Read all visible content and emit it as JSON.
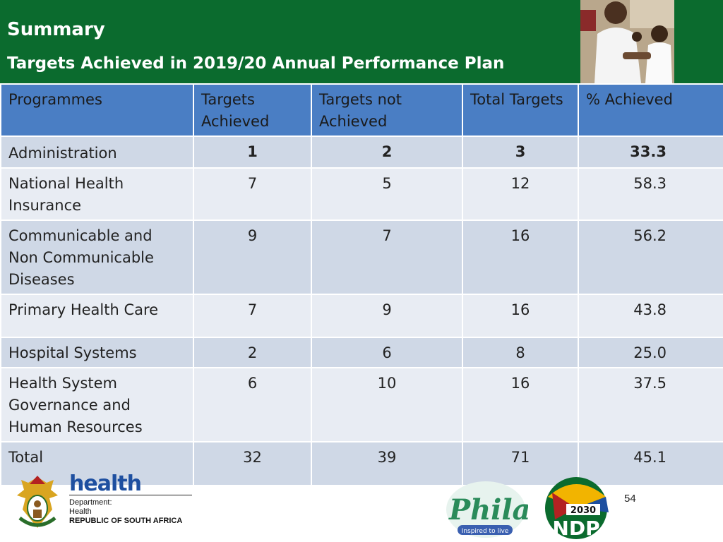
{
  "header": {
    "title": "Summary",
    "subtitle": "Targets Achieved in 2019/20 Annual Performance Plan"
  },
  "table": {
    "columns": [
      "Programmes",
      "Targets Achieved",
      "Targets not Achieved",
      "Total Targets",
      "% Achieved"
    ],
    "rows": [
      {
        "programme": "Administration",
        "achieved": "1",
        "not_achieved": "2",
        "total": "3",
        "pct": "33.3"
      },
      {
        "programme": "National Health Insurance",
        "achieved": "7",
        "not_achieved": "5",
        "total": "12",
        "pct": "58.3"
      },
      {
        "programme": "Communicable and Non Communicable Diseases",
        "achieved": "9",
        "not_achieved": "7",
        "total": "16",
        "pct": "56.2"
      },
      {
        "programme": "Primary Health Care",
        "achieved": "7",
        "not_achieved": "9",
        "total": "16",
        "pct": "43.8"
      },
      {
        "programme": "Hospital Systems",
        "achieved": "2",
        "not_achieved": "6",
        "total": "8",
        "pct": "25.0"
      },
      {
        "programme": "Health System Governance and Human Resources",
        "achieved": "6",
        "not_achieved": "10",
        "total": "16",
        "pct": "37.5"
      },
      {
        "programme": "Total",
        "achieved": "32",
        "not_achieved": "39",
        "total": "71",
        "pct": "45.1"
      }
    ]
  },
  "footer": {
    "logo_word": "health",
    "dept_line1": "Department:",
    "dept_line2": "Health",
    "dept_line3": "REPUBLIC OF SOUTH AFRICA",
    "phila_text": "Phila",
    "phila_tagline": "Inspired to live",
    "ndp_year": "2030",
    "ndp_text": "NDP",
    "page_number": "54"
  },
  "colors": {
    "header_green": "#0b6b2e",
    "table_header_blue": "#4a7ec4",
    "row_dark": "#cfd8e6",
    "row_light": "#e8ecf3"
  }
}
